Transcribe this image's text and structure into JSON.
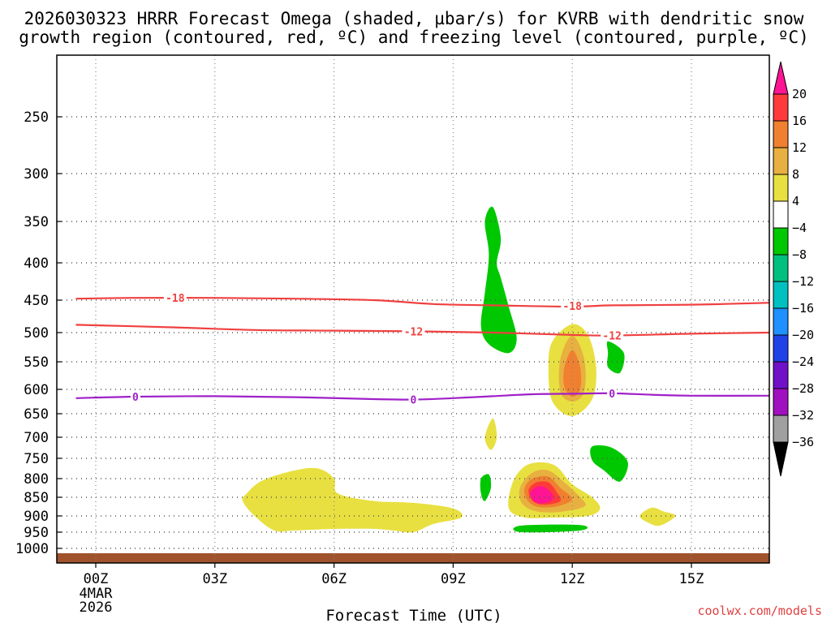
{
  "chart_data": {
    "type": "contour-timeheight",
    "title": [
      "2026030323 HRRR Forecast Omega (shaded, µbar/s) for KVRB with dendritic snow",
      "growth region (contoured, red, ºC) and freezing level (contoured, purple, ºC)"
    ],
    "xlabel": "Forecast Time (UTC)",
    "ylabel": "",
    "x_ticks": [
      {
        "hour": 0,
        "label": "00Z"
      },
      {
        "hour": 3,
        "label": "03Z"
      },
      {
        "hour": 6,
        "label": "06Z"
      },
      {
        "hour": 9,
        "label": "09Z"
      },
      {
        "hour": 12,
        "label": "12Z"
      },
      {
        "hour": 15,
        "label": "15Z"
      }
    ],
    "x_date_labels": [
      "4MAR",
      "2026"
    ],
    "xlim": [
      -0.5,
      17
    ],
    "y_ticks": [
      250,
      300,
      350,
      400,
      450,
      500,
      550,
      600,
      650,
      700,
      750,
      800,
      850,
      900,
      950,
      1000
    ],
    "ylim": [
      200,
      1025
    ],
    "surface_pressure": 1015,
    "colorbar": {
      "levels": [
        -36,
        -32,
        -28,
        -24,
        -20,
        -16,
        -12,
        -8,
        -4,
        4,
        8,
        12,
        16,
        20
      ],
      "label_levels": [
        "20",
        "16",
        "12",
        "8",
        "4",
        "−4",
        "−8",
        "−12",
        "−16",
        "−20",
        "−24",
        "−28",
        "−32",
        "−36"
      ],
      "colors_top_to_bottom": [
        "#ff1493",
        "#ff3a3a",
        "#f08030",
        "#e8b040",
        "#e8e040",
        "#ffffff",
        "#00c800",
        "#00c080",
        "#00c0c0",
        "#1e90ff",
        "#2040e8",
        "#7010c8",
        "#a010c0",
        "#a0a0a0",
        "#000000"
      ]
    },
    "contours": [
      {
        "name": "-18C isotherm",
        "color": "#f04040",
        "label": "-18",
        "points": [
          [
            -0.5,
            448
          ],
          [
            1,
            447
          ],
          [
            3,
            447
          ],
          [
            5,
            448
          ],
          [
            7,
            450
          ],
          [
            8.5,
            456
          ],
          [
            10,
            458
          ],
          [
            12,
            460
          ],
          [
            13,
            458
          ],
          [
            15,
            457
          ],
          [
            17,
            454
          ]
        ]
      },
      {
        "name": "-12C isotherm",
        "color": "#f04040",
        "label": "-12",
        "points": [
          [
            -0.5,
            488
          ],
          [
            2,
            492
          ],
          [
            4,
            496
          ],
          [
            6,
            497
          ],
          [
            8,
            498
          ],
          [
            10,
            500
          ],
          [
            12,
            504
          ],
          [
            13,
            505
          ],
          [
            15,
            502
          ],
          [
            17,
            500
          ]
        ]
      },
      {
        "name": "0C freezing level",
        "color": "#a020c8",
        "label": "0",
        "points": [
          [
            -0.5,
            618
          ],
          [
            1,
            615
          ],
          [
            3,
            614
          ],
          [
            5,
            616
          ],
          [
            7,
            620
          ],
          [
            8,
            621
          ],
          [
            9,
            618
          ],
          [
            10,
            614
          ],
          [
            11,
            610
          ],
          [
            12,
            609
          ],
          [
            13,
            608
          ],
          [
            14,
            611
          ],
          [
            15,
            613
          ],
          [
            17,
            613
          ]
        ]
      }
    ],
    "contour_label_positions": [
      {
        "label": "-18",
        "hour": 2.0,
        "p": 447
      },
      {
        "label": "-18",
        "hour": 12.0,
        "p": 459
      },
      {
        "label": "-12",
        "hour": 8.0,
        "p": 498
      },
      {
        "label": "-12",
        "hour": 13.0,
        "p": 505
      },
      {
        "label": "0",
        "hour": 1.0,
        "p": 615
      },
      {
        "label": "0",
        "hour": 8.0,
        "p": 621
      },
      {
        "label": "0",
        "hour": 13.0,
        "p": 608
      }
    ],
    "shaded_regions": [
      {
        "value_range": "-8 to -4",
        "color": "#00c800",
        "points": [
          [
            10.0,
            335
          ],
          [
            10.2,
            370
          ],
          [
            10.1,
            400
          ],
          [
            10.2,
            420
          ],
          [
            10.4,
            460
          ],
          [
            10.6,
            510
          ],
          [
            10.4,
            535
          ],
          [
            9.9,
            520
          ],
          [
            9.7,
            490
          ],
          [
            9.8,
            440
          ],
          [
            9.9,
            390
          ],
          [
            9.8,
            350
          ]
        ]
      },
      {
        "value_range": "-8 to -4",
        "color": "#00c800",
        "points": [
          [
            12.9,
            515
          ],
          [
            13.3,
            535
          ],
          [
            13.2,
            570
          ],
          [
            12.9,
            560
          ],
          [
            12.9,
            535
          ]
        ]
      },
      {
        "value_range": "-8 to -4",
        "color": "#00c800",
        "points": [
          [
            12.5,
            722
          ],
          [
            13.0,
            725
          ],
          [
            13.4,
            760
          ],
          [
            13.2,
            808
          ],
          [
            12.8,
            780
          ],
          [
            12.5,
            755
          ]
        ]
      },
      {
        "value_range": "-8 to -4",
        "color": "#00c800",
        "points": [
          [
            9.7,
            800
          ],
          [
            9.9,
            790
          ],
          [
            9.95,
            825
          ],
          [
            9.8,
            860
          ],
          [
            9.7,
            840
          ]
        ]
      },
      {
        "value_range": "-8 to -4",
        "color": "#00c800",
        "points": [
          [
            10.7,
            930
          ],
          [
            12.2,
            928
          ],
          [
            12.2,
            945
          ],
          [
            10.7,
            950
          ]
        ]
      },
      {
        "value_range": "4 to 8",
        "color": "#e8e040",
        "points": [
          [
            9.8,
            700
          ],
          [
            10.0,
            660
          ],
          [
            10.1,
            700
          ],
          [
            9.95,
            730
          ]
        ]
      },
      {
        "value_range": "4 to 8",
        "color": "#e8e040",
        "points": [
          [
            3.8,
            840
          ],
          [
            4.2,
            805
          ],
          [
            5.0,
            780
          ],
          [
            5.6,
            775
          ],
          [
            6.0,
            800
          ],
          [
            6.1,
            840
          ],
          [
            7.0,
            860
          ],
          [
            8.0,
            865
          ],
          [
            9.0,
            880
          ],
          [
            9.2,
            905
          ],
          [
            8.5,
            925
          ],
          [
            8.0,
            950
          ],
          [
            7.5,
            945
          ],
          [
            7.0,
            940
          ],
          [
            6.0,
            940
          ],
          [
            5.0,
            945
          ],
          [
            4.5,
            945
          ],
          [
            4.0,
            900
          ],
          [
            3.7,
            860
          ]
        ]
      },
      {
        "value_range": "4 to 8",
        "color": "#e8e040",
        "points": [
          [
            11.5,
            515
          ],
          [
            12.0,
            487
          ],
          [
            12.4,
            505
          ],
          [
            12.6,
            560
          ],
          [
            12.5,
            620
          ],
          [
            12.0,
            655
          ],
          [
            11.5,
            625
          ],
          [
            11.4,
            560
          ]
        ]
      },
      {
        "value_range": "8 to 12",
        "color": "#e8b040",
        "points": [
          [
            11.7,
            545
          ],
          [
            12.0,
            505
          ],
          [
            12.3,
            545
          ],
          [
            12.3,
            605
          ],
          [
            12.0,
            625
          ],
          [
            11.7,
            605
          ]
        ]
      },
      {
        "value_range": "12 to 16",
        "color": "#f08030",
        "points": [
          [
            11.8,
            560
          ],
          [
            12.0,
            530
          ],
          [
            12.2,
            560
          ],
          [
            12.2,
            600
          ],
          [
            12.0,
            615
          ],
          [
            11.8,
            595
          ]
        ]
      },
      {
        "value_range": "4 to 8",
        "color": "#e8e040",
        "points": [
          [
            10.5,
            810
          ],
          [
            10.8,
            770
          ],
          [
            11.2,
            760
          ],
          [
            11.6,
            770
          ],
          [
            12.0,
            815
          ],
          [
            12.5,
            850
          ],
          [
            12.7,
            880
          ],
          [
            12.4,
            900
          ],
          [
            11.5,
            905
          ],
          [
            10.8,
            905
          ],
          [
            10.4,
            880
          ]
        ]
      },
      {
        "value_range": "8 to 12",
        "color": "#e8b040",
        "points": [
          [
            10.7,
            820
          ],
          [
            11.0,
            785
          ],
          [
            11.4,
            780
          ],
          [
            11.8,
            810
          ],
          [
            12.2,
            850
          ],
          [
            12.3,
            875
          ],
          [
            11.6,
            890
          ],
          [
            11.0,
            885
          ],
          [
            10.7,
            860
          ]
        ]
      },
      {
        "value_range": "12 to 16",
        "color": "#f08030",
        "points": [
          [
            10.8,
            825
          ],
          [
            11.0,
            800
          ],
          [
            11.4,
            795
          ],
          [
            11.7,
            825
          ],
          [
            12.0,
            855
          ],
          [
            11.6,
            875
          ],
          [
            11.1,
            875
          ],
          [
            10.85,
            855
          ]
        ]
      },
      {
        "value_range": "16 to 20",
        "color": "#ff3a3a",
        "points": [
          [
            10.9,
            830
          ],
          [
            11.1,
            810
          ],
          [
            11.4,
            810
          ],
          [
            11.6,
            835
          ],
          [
            11.7,
            860
          ],
          [
            11.3,
            870
          ],
          [
            11.0,
            860
          ]
        ]
      },
      {
        "value_range": ">20",
        "color": "#ff1493",
        "points": [
          [
            10.95,
            835
          ],
          [
            11.2,
            820
          ],
          [
            11.45,
            835
          ],
          [
            11.5,
            857
          ],
          [
            11.2,
            867
          ],
          [
            11.0,
            857
          ]
        ]
      },
      {
        "value_range": "4 to 8",
        "color": "#e8e040",
        "points": [
          [
            13.7,
            900
          ],
          [
            14.0,
            878
          ],
          [
            14.3,
            888
          ],
          [
            14.6,
            900
          ],
          [
            14.2,
            930
          ],
          [
            13.9,
            920
          ]
        ]
      }
    ]
  },
  "credit": "coolwx.com/models"
}
